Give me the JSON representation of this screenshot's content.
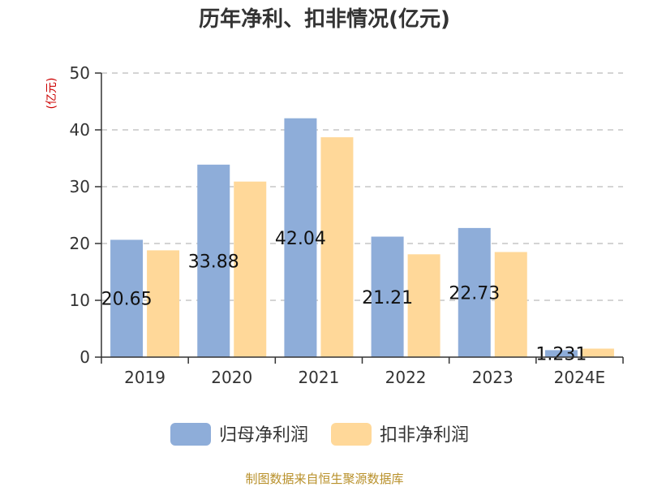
{
  "chart_data": {
    "type": "bar",
    "title": "历年净利、扣非情况(亿元)",
    "ylabel": "(亿元)",
    "xlabel": "",
    "categories": [
      "2019",
      "2020",
      "2021",
      "2022",
      "2023",
      "2024E"
    ],
    "ylim": [
      0,
      50
    ],
    "yticks": [
      "0",
      "10",
      "20",
      "30",
      "40",
      "50"
    ],
    "grid": true,
    "legend_position": "bottom",
    "series": [
      {
        "name": "归母净利润",
        "color": "#8eadd9",
        "values": [
          20.65,
          33.88,
          42.04,
          21.21,
          22.73,
          1.231
        ],
        "labels": [
          "20.65",
          "33.88",
          "42.04",
          "21.21",
          "22.73",
          "1.231"
        ]
      },
      {
        "name": "扣非净利润",
        "color": "#ffd899",
        "values": [
          18.8,
          30.9,
          38.7,
          18.1,
          18.5,
          1.5
        ]
      }
    ]
  },
  "source": "制图数据来自恒生聚源数据库"
}
